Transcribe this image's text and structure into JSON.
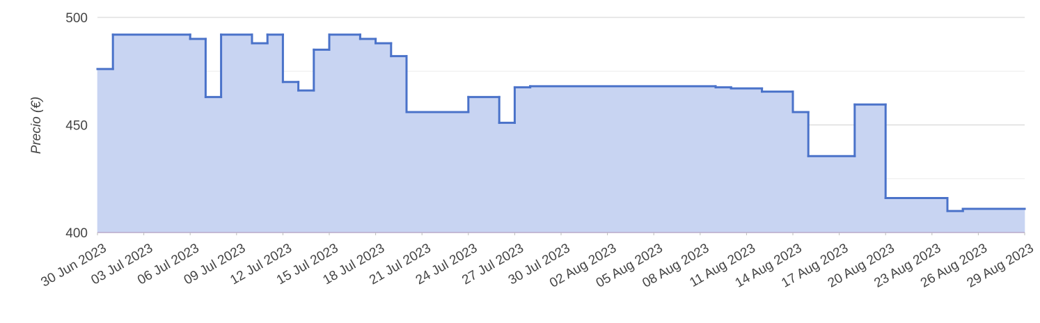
{
  "chart_data": {
    "type": "step-area",
    "y_label": "Precio (€)",
    "x": [
      "2023-06-30",
      "2023-07-01",
      "2023-07-06",
      "2023-07-07",
      "2023-07-08",
      "2023-07-10",
      "2023-07-11",
      "2023-07-12",
      "2023-07-13",
      "2023-07-14",
      "2023-07-15",
      "2023-07-17",
      "2023-07-18",
      "2023-07-19",
      "2023-07-20",
      "2023-07-24",
      "2023-07-26",
      "2023-07-27",
      "2023-07-28",
      "2023-08-09",
      "2023-08-10",
      "2023-08-12",
      "2023-08-14",
      "2023-08-15",
      "2023-08-18",
      "2023-08-20",
      "2023-08-24",
      "2023-08-25",
      "2023-08-29"
    ],
    "series": [
      {
        "color": "#4a72c9",
        "fill": "#c8d4f2",
        "values": [
          476,
          492,
          490,
          463,
          492,
          488,
          492,
          470,
          466,
          485,
          492,
          490,
          488,
          482,
          456,
          463,
          451,
          467.5,
          468,
          467.5,
          467,
          465.5,
          456,
          435.5,
          459.5,
          416,
          410,
          411,
          411
        ]
      }
    ],
    "xlim": [
      "2023-06-30",
      "2023-08-29"
    ],
    "xticks": [
      {
        "value": "2023-06-30",
        "label": "30 Jun 2023"
      },
      {
        "value": "2023-07-03",
        "label": "03 Jul 2023"
      },
      {
        "value": "2023-07-06",
        "label": "06 Jul 2023"
      },
      {
        "value": "2023-07-09",
        "label": "09 Jul 2023"
      },
      {
        "value": "2023-07-12",
        "label": "12 Jul 2023"
      },
      {
        "value": "2023-07-15",
        "label": "15 Jul 2023"
      },
      {
        "value": "2023-07-18",
        "label": "18 Jul 2023"
      },
      {
        "value": "2023-07-21",
        "label": "21 Jul 2023"
      },
      {
        "value": "2023-07-24",
        "label": "24 Jul 2023"
      },
      {
        "value": "2023-07-27",
        "label": "27 Jul 2023"
      },
      {
        "value": "2023-07-30",
        "label": "30 Jul 2023"
      },
      {
        "value": "2023-08-02",
        "label": "02 Aug 2023"
      },
      {
        "value": "2023-08-05",
        "label": "05 Aug 2023"
      },
      {
        "value": "2023-08-08",
        "label": "08 Aug 2023"
      },
      {
        "value": "2023-08-11",
        "label": "11 Aug 2023"
      },
      {
        "value": "2023-08-14",
        "label": "14 Aug 2023"
      },
      {
        "value": "2023-08-17",
        "label": "17 Aug 2023"
      },
      {
        "value": "2023-08-20",
        "label": "20 Aug 2023"
      },
      {
        "value": "2023-08-23",
        "label": "23 Aug 2023"
      },
      {
        "value": "2023-08-26",
        "label": "26 Aug 2023"
      },
      {
        "value": "2023-08-29",
        "label": "29 Aug 2023"
      }
    ],
    "ylim": [
      400,
      500
    ],
    "yticks": [
      400,
      450,
      500
    ],
    "y_minor_gridlines": [
      425,
      475
    ],
    "grid": true
  }
}
